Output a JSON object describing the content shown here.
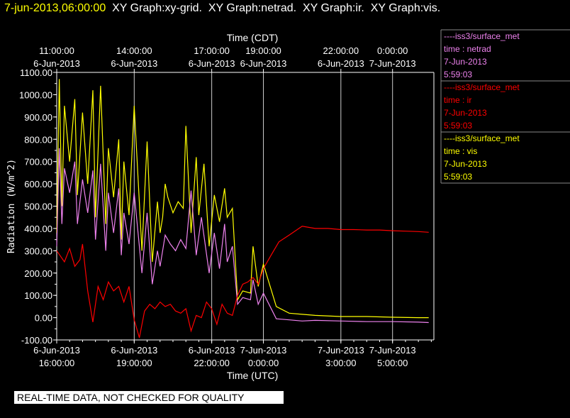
{
  "header": {
    "date": "7-jun-2013,06:00:00",
    "graphs": "  XY Graph:xy-grid.  XY Graph:netrad.  XY Graph:ir.  XY Graph:vis."
  },
  "colors": {
    "netrad": "#ee82ee",
    "ir": "#ff0000",
    "vis": "#ffff00",
    "grid": "#ffffff",
    "background": "#000000"
  },
  "legend": [
    {
      "key": "netrad",
      "source": "----iss3/surface_met",
      "field": "time : netrad",
      "date": "7-Jun-2013",
      "time": "5:59:03"
    },
    {
      "key": "ir",
      "source": "----iss3/surface_met",
      "field": "time : ir",
      "date": "7-Jun-2013",
      "time": "5:59:03"
    },
    {
      "key": "vis",
      "source": "----iss3/surface_met",
      "field": "time : vis",
      "date": "7-Jun-2013",
      "time": "5:59:03"
    }
  ],
  "disclaimer": "REAL-TIME DATA, NOT CHECKED FOR QUALITY",
  "chart_data": {
    "type": "line",
    "top_axis_label": "Time (CDT)",
    "xlabel": "Time (UTC)",
    "ylabel": "Radiation (W/m^2)",
    "xlim": [
      0,
      14.6
    ],
    "ylim": [
      -100,
      1100
    ],
    "x_unit": "hours after 6-Jun-2013 16:00 UTC",
    "yticks": [
      "1100.00",
      "1000.00",
      "900.00",
      "800.00",
      "700.00",
      "600.00",
      "500.00",
      "400.00",
      "300.00",
      "200.00",
      "100.00",
      "0.00",
      "-100.00"
    ],
    "top_ticks": [
      {
        "x": 0,
        "time": "11:00:00",
        "date": "6-Jun-2013"
      },
      {
        "x": 3,
        "time": "14:00:00",
        "date": "6-Jun-2013"
      },
      {
        "x": 6,
        "time": "17:00:00",
        "date": "6-Jun-2013"
      },
      {
        "x": 8,
        "time": "19:00:00",
        "date": "6-Jun-2013"
      },
      {
        "x": 11,
        "time": "22:00:00",
        "date": "6-Jun-2013"
      },
      {
        "x": 13,
        "time": "0:00:00",
        "date": "7-Jun-2013"
      }
    ],
    "bottom_ticks": [
      {
        "x": 0,
        "date": "6-Jun-2013",
        "time": "16:00:00"
      },
      {
        "x": 3,
        "date": "6-Jun-2013",
        "time": "19:00:00"
      },
      {
        "x": 6,
        "date": "6-Jun-2013",
        "time": "22:00:00"
      },
      {
        "x": 8,
        "date": "7-Jun-2013",
        "time": "0:00:00"
      },
      {
        "x": 11,
        "date": "7-Jun-2013",
        "time": "3:00:00"
      },
      {
        "x": 13,
        "date": "7-Jun-2013",
        "time": "5:00:00"
      }
    ],
    "series": [
      {
        "key": "vis",
        "x": [
          0,
          0.1,
          0.2,
          0.3,
          0.5,
          0.7,
          0.8,
          1.0,
          1.2,
          1.4,
          1.5,
          1.7,
          1.9,
          2.0,
          2.2,
          2.4,
          2.5,
          2.6,
          2.8,
          3.0,
          3.3,
          3.5,
          3.7,
          3.9,
          4.0,
          4.1,
          4.2,
          4.3,
          4.5,
          4.7,
          4.9,
          5.0,
          5.2,
          5.4,
          5.5,
          5.7,
          5.9,
          6.1,
          6.3,
          6.5,
          6.6,
          6.8,
          7.0,
          7.2,
          7.5,
          7.6,
          7.8,
          8.0,
          8.5,
          9.0,
          9.5,
          10,
          11,
          12,
          13,
          14,
          14.4
        ],
        "y": [
          380,
          1070,
          500,
          950,
          700,
          980,
          550,
          920,
          600,
          1020,
          450,
          1040,
          420,
          760,
          540,
          800,
          350,
          700,
          460,
          950,
          300,
          790,
          250,
          520,
          380,
          450,
          600,
          540,
          470,
          520,
          490,
          860,
          380,
          720,
          460,
          690,
          320,
          550,
          430,
          580,
          450,
          490,
          80,
          120,
          110,
          320,
          140,
          240,
          50,
          20,
          15,
          10,
          5,
          5,
          2,
          0,
          0
        ]
      },
      {
        "key": "netrad",
        "x": [
          0,
          0.1,
          0.2,
          0.3,
          0.5,
          0.7,
          0.8,
          1.0,
          1.2,
          1.4,
          1.5,
          1.7,
          1.9,
          2.0,
          2.2,
          2.4,
          2.5,
          2.6,
          2.8,
          3.0,
          3.3,
          3.5,
          3.7,
          3.9,
          4.0,
          4.2,
          4.4,
          4.6,
          4.8,
          5.0,
          5.2,
          5.4,
          5.6,
          5.9,
          6.1,
          6.3,
          6.5,
          6.6,
          6.8,
          7.0,
          7.2,
          7.5,
          7.6,
          7.8,
          8.0,
          8.5,
          9.0,
          9.5,
          10,
          11,
          12,
          13,
          14,
          14.4
        ],
        "y": [
          320,
          760,
          420,
          670,
          560,
          700,
          420,
          620,
          470,
          660,
          350,
          690,
          300,
          560,
          380,
          580,
          280,
          470,
          330,
          560,
          200,
          470,
          150,
          300,
          230,
          370,
          330,
          300,
          350,
          310,
          570,
          280,
          450,
          200,
          380,
          220,
          420,
          250,
          320,
          60,
          90,
          80,
          170,
          60,
          110,
          -5,
          -10,
          -15,
          -12,
          -15,
          -18,
          -18,
          -20,
          -22
        ]
      },
      {
        "key": "ir",
        "x": [
          0,
          0.3,
          0.5,
          0.7,
          0.9,
          1.0,
          1.2,
          1.4,
          1.6,
          1.8,
          2.0,
          2.2,
          2.4,
          2.6,
          2.8,
          3.0,
          3.2,
          3.4,
          3.6,
          3.8,
          4.0,
          4.2,
          4.4,
          4.6,
          4.8,
          5.0,
          5.2,
          5.4,
          5.6,
          5.8,
          6.0,
          6.2,
          6.4,
          6.6,
          6.8,
          7.0,
          7.2,
          7.4,
          7.6,
          7.8,
          8.0,
          8.3,
          8.6,
          9.0,
          9.5,
          10.0,
          10.5,
          11,
          11.5,
          12,
          12.5,
          13,
          13.5,
          14,
          14.4
        ],
        "y": [
          300,
          250,
          310,
          230,
          260,
          330,
          120,
          -20,
          140,
          80,
          160,
          120,
          140,
          70,
          140,
          -10,
          -90,
          30,
          60,
          40,
          70,
          50,
          60,
          30,
          20,
          40,
          -60,
          10,
          0,
          70,
          40,
          -30,
          60,
          20,
          10,
          100,
          150,
          160,
          180,
          150,
          220,
          280,
          340,
          370,
          410,
          400,
          400,
          395,
          395,
          393,
          393,
          390,
          388,
          386,
          383
        ]
      }
    ]
  }
}
